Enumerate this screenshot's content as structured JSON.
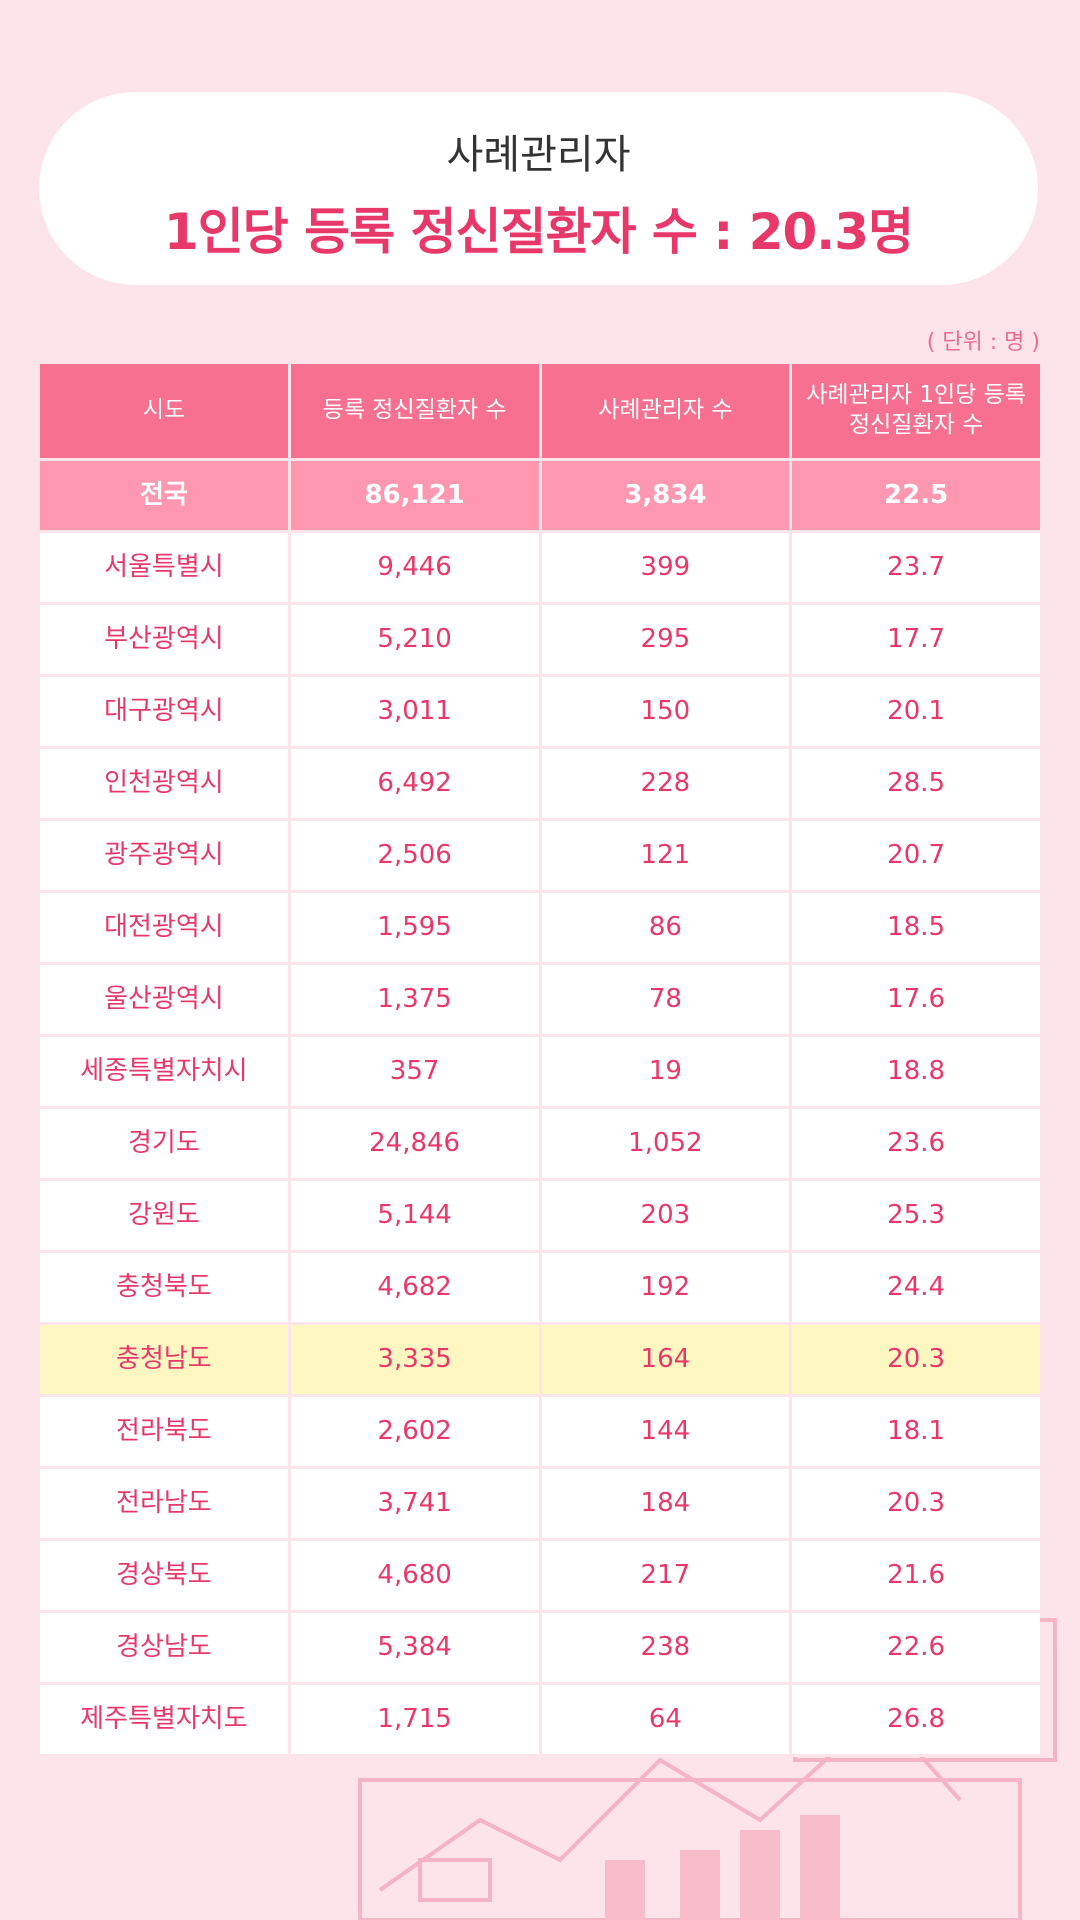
{
  "header": {
    "title": "사례관리자",
    "subtitle": "1인당 등록 정신질환자 수 : 20.3명"
  },
  "unit_note": "( 단위 : 명 )",
  "table": {
    "columns": [
      "시도",
      "등록 정신질환자 수",
      "사례관리자 수",
      "사례관리자 1인당 등록 정신질환자 수"
    ],
    "total": [
      "전국",
      "86,121",
      "3,834",
      "22.5"
    ],
    "rows": [
      [
        "서울특별시",
        "9,446",
        "399",
        "23.7"
      ],
      [
        "부산광역시",
        "5,210",
        "295",
        "17.7"
      ],
      [
        "대구광역시",
        "3,011",
        "150",
        "20.1"
      ],
      [
        "인천광역시",
        "6,492",
        "228",
        "28.5"
      ],
      [
        "광주광역시",
        "2,506",
        "121",
        "20.7"
      ],
      [
        "대전광역시",
        "1,595",
        "86",
        "18.5"
      ],
      [
        "울산광역시",
        "1,375",
        "78",
        "17.6"
      ],
      [
        "세종특별자치시",
        "357",
        "19",
        "18.8"
      ],
      [
        "경기도",
        "24,846",
        "1,052",
        "23.6"
      ],
      [
        "강원도",
        "5,144",
        "203",
        "25.3"
      ],
      [
        "충청북도",
        "4,682",
        "192",
        "24.4"
      ],
      [
        "충청남도",
        "3,335",
        "164",
        "20.3"
      ],
      [
        "전라북도",
        "2,602",
        "144",
        "18.1"
      ],
      [
        "전라남도",
        "3,741",
        "184",
        "20.3"
      ],
      [
        "경상북도",
        "4,680",
        "217",
        "21.6"
      ],
      [
        "경상남도",
        "5,384",
        "238",
        "22.6"
      ],
      [
        "제주특별자치도",
        "1,715",
        "64",
        "26.8"
      ]
    ],
    "highlighted_row": 11
  }
}
